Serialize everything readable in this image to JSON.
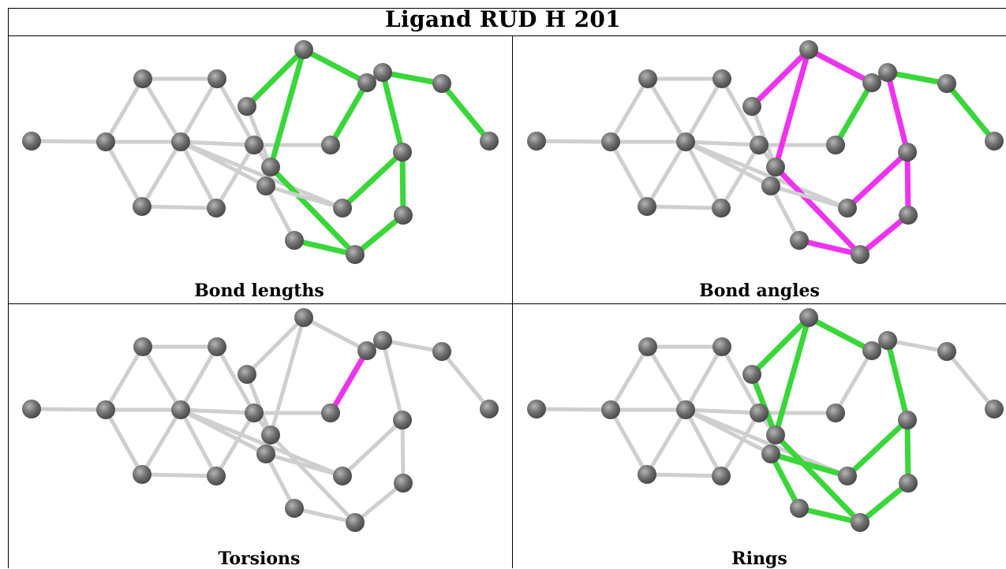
{
  "header": {
    "title": "Ligand RUD H 201"
  },
  "panels": [
    {
      "caption": "Bond lengths",
      "highlight_color": "#3ad63a"
    },
    {
      "caption": "Bond angles",
      "highlight_color": "#ee33ee"
    },
    {
      "caption": "Torsions",
      "highlight_color": "#ee33ee"
    },
    {
      "caption": "Rings",
      "highlight_color": "#3ad63a"
    }
  ],
  "colors": {
    "atom": "#707070",
    "bond_default": "#cfcfcf",
    "green": "#3ad63a",
    "magenta": "#ee33ee"
  }
}
